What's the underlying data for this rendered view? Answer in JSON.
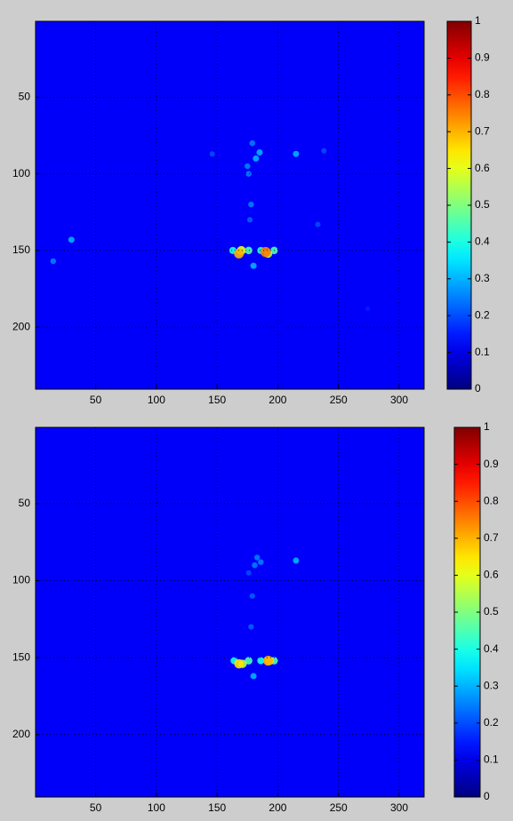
{
  "chart_data": [
    {
      "type": "heatmap",
      "colormap": "jet",
      "grid": true,
      "xlim": [
        0.5,
        320.5
      ],
      "ylim": [
        240.5,
        0.5
      ],
      "xticks": [
        50,
        100,
        150,
        200,
        250,
        300
      ],
      "yticks": [
        50,
        100,
        150,
        200
      ],
      "clim": [
        0,
        1
      ],
      "cticks": [
        0,
        0.1,
        0.2,
        0.3,
        0.4,
        0.5,
        0.6,
        0.7,
        0.8,
        0.9,
        1
      ],
      "x": [
        146,
        15,
        30,
        233,
        274,
        238,
        177,
        180,
        178,
        176,
        182,
        185,
        179,
        175,
        215,
        163,
        176,
        186,
        197,
        170,
        192,
        168,
        190
      ],
      "y": [
        87,
        157,
        143,
        133,
        188,
        85,
        130,
        160,
        120,
        100,
        90,
        86,
        80,
        95,
        87,
        150,
        150,
        150,
        150,
        150,
        152,
        152,
        151
      ],
      "values": [
        0.2,
        0.25,
        0.3,
        0.2,
        0.15,
        0.2,
        0.22,
        0.3,
        0.25,
        0.25,
        0.3,
        0.3,
        0.25,
        0.25,
        0.3,
        0.4,
        0.45,
        0.4,
        0.45,
        0.6,
        0.55,
        0.7,
        0.75
      ]
    },
    {
      "type": "heatmap",
      "colormap": "jet",
      "grid": true,
      "xlim": [
        0.5,
        320.5
      ],
      "ylim": [
        240.5,
        0.5
      ],
      "xticks": [
        50,
        100,
        150,
        200,
        250,
        300
      ],
      "yticks": [
        50,
        100,
        150,
        200
      ],
      "clim": [
        0,
        1
      ],
      "cticks": [
        0,
        0.1,
        0.2,
        0.3,
        0.4,
        0.5,
        0.6,
        0.7,
        0.8,
        0.9,
        1
      ],
      "x": [
        181,
        179,
        178,
        183,
        186,
        176,
        215,
        180,
        164,
        176,
        186,
        197,
        171,
        193,
        168,
        192
      ],
      "y": [
        90,
        110,
        130,
        85,
        88,
        95,
        87,
        162,
        152,
        152,
        152,
        152,
        154,
        152,
        154,
        152
      ],
      "values": [
        0.25,
        0.22,
        0.22,
        0.25,
        0.25,
        0.2,
        0.3,
        0.3,
        0.4,
        0.45,
        0.4,
        0.45,
        0.55,
        0.6,
        0.65,
        0.7
      ]
    }
  ]
}
